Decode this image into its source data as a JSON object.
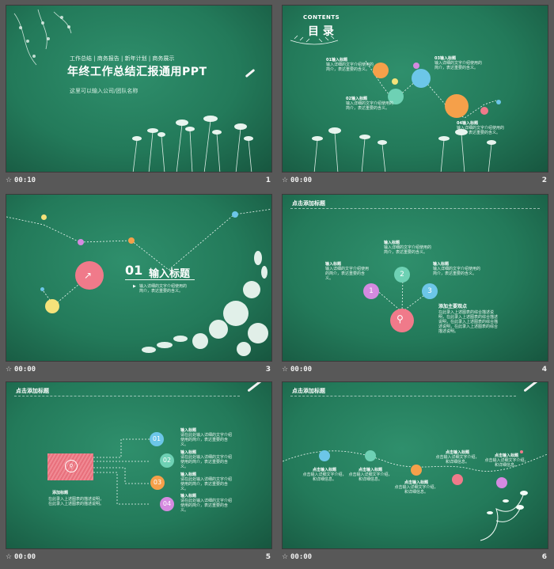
{
  "slides": [
    {
      "time": "00:10",
      "number": "1",
      "subtitle": "工作总结 | 商务报告 | 新年计划 | 商务展示",
      "title": "年终工作总结汇报通用PPT",
      "company": "这里可以输入公司/团队名称"
    },
    {
      "time": "00:00",
      "number": "2",
      "contents_label": "CONTENTS",
      "title": "目 录",
      "items": [
        {
          "heading": "01输入标题",
          "text": "输入详细的文字介绍使用的简介，表达重要的含义。"
        },
        {
          "heading": "02输入标题",
          "text": "输入详细的文字介绍使用的简介，表达重要的含义。"
        },
        {
          "heading": "03输入标题",
          "text": "输入详细的文字介绍使用的简介，表达重要的含义。"
        },
        {
          "heading": "04输入标题",
          "text": "输入详细的文字介绍使用的简介，表达重要的含义。"
        }
      ]
    },
    {
      "time": "00:00",
      "number": "3",
      "section_number": "01",
      "section_title": "输入标题",
      "section_text_1": "输入详细的文字介绍使用的",
      "section_text_2": "简介，表达重要的含义。"
    },
    {
      "time": "00:00",
      "number": "4",
      "header": "点击添加标题",
      "item_left_heading": "输入标题",
      "item_left_text": "输入详细的文字介绍使用的简介，表达重要的含义。",
      "item_top_heading": "输入标题",
      "item_top_text": "输入详细的文字介绍使用的简介，表达重要的含义。",
      "item_right_heading": "输入标题",
      "item_right_text": "输入详细的文字介绍使用的简介，表达重要的含义。",
      "n1": "1",
      "n2": "2",
      "n3": "3",
      "main_heading": "添加主要观点",
      "main_text": "在此录入上述图表的综合描述说明，在此录入上述图表的综合描述说明，在此录入上述图表的综合描述说明，在此录入上述图表的综合描述说明。"
    },
    {
      "time": "00:00",
      "number": "5",
      "header": "点击添加标题",
      "box_heading": "添加标题",
      "box_text": "在此录入上述图表的描述说明，在此录入上述图表的描述说明。",
      "items": [
        {
          "num": "01",
          "heading": "输入标题",
          "text": "请在此处输入详细的文字介绍使用的简介，表达重要的含义。"
        },
        {
          "num": "02",
          "heading": "输入标题",
          "text": "请在此处输入详细的文字介绍使用的简介，表达重要的含义。"
        },
        {
          "num": "03",
          "heading": "输入标题",
          "text": "请在此处输入详细的文字介绍使用的简介，表达重要的含义。"
        },
        {
          "num": "04",
          "heading": "输入标题",
          "text": "请在此处输入详细的文字介绍使用的简介，表达重要的含义。"
        }
      ]
    },
    {
      "time": "00:00",
      "number": "6",
      "header": "点击添加标题",
      "nodes": [
        {
          "heading": "点击输入标题",
          "text": "点击输入详细文字介绍，和详细信息。"
        },
        {
          "heading": "点击输入标题",
          "text": "点击输入详细文字介绍，和详细信息。"
        },
        {
          "heading": "点击输入标题",
          "text": "点击输入详细文字介绍，和详细信息。"
        },
        {
          "heading": "点击输入标题",
          "text": "点击输入详细文字介绍，和详细信息。"
        },
        {
          "heading": "点击输入标题",
          "text": "点击输入详细文字介绍，和详细信息。"
        }
      ]
    }
  ],
  "colors": {
    "bg": "#585858",
    "board": "#237a5a",
    "orange": "#f5a04a",
    "blue": "#6cc6e8",
    "pink": "#f07a8a",
    "green": "#6ed1b4",
    "yellow": "#f5e27a",
    "purple": "#d58ae0"
  }
}
